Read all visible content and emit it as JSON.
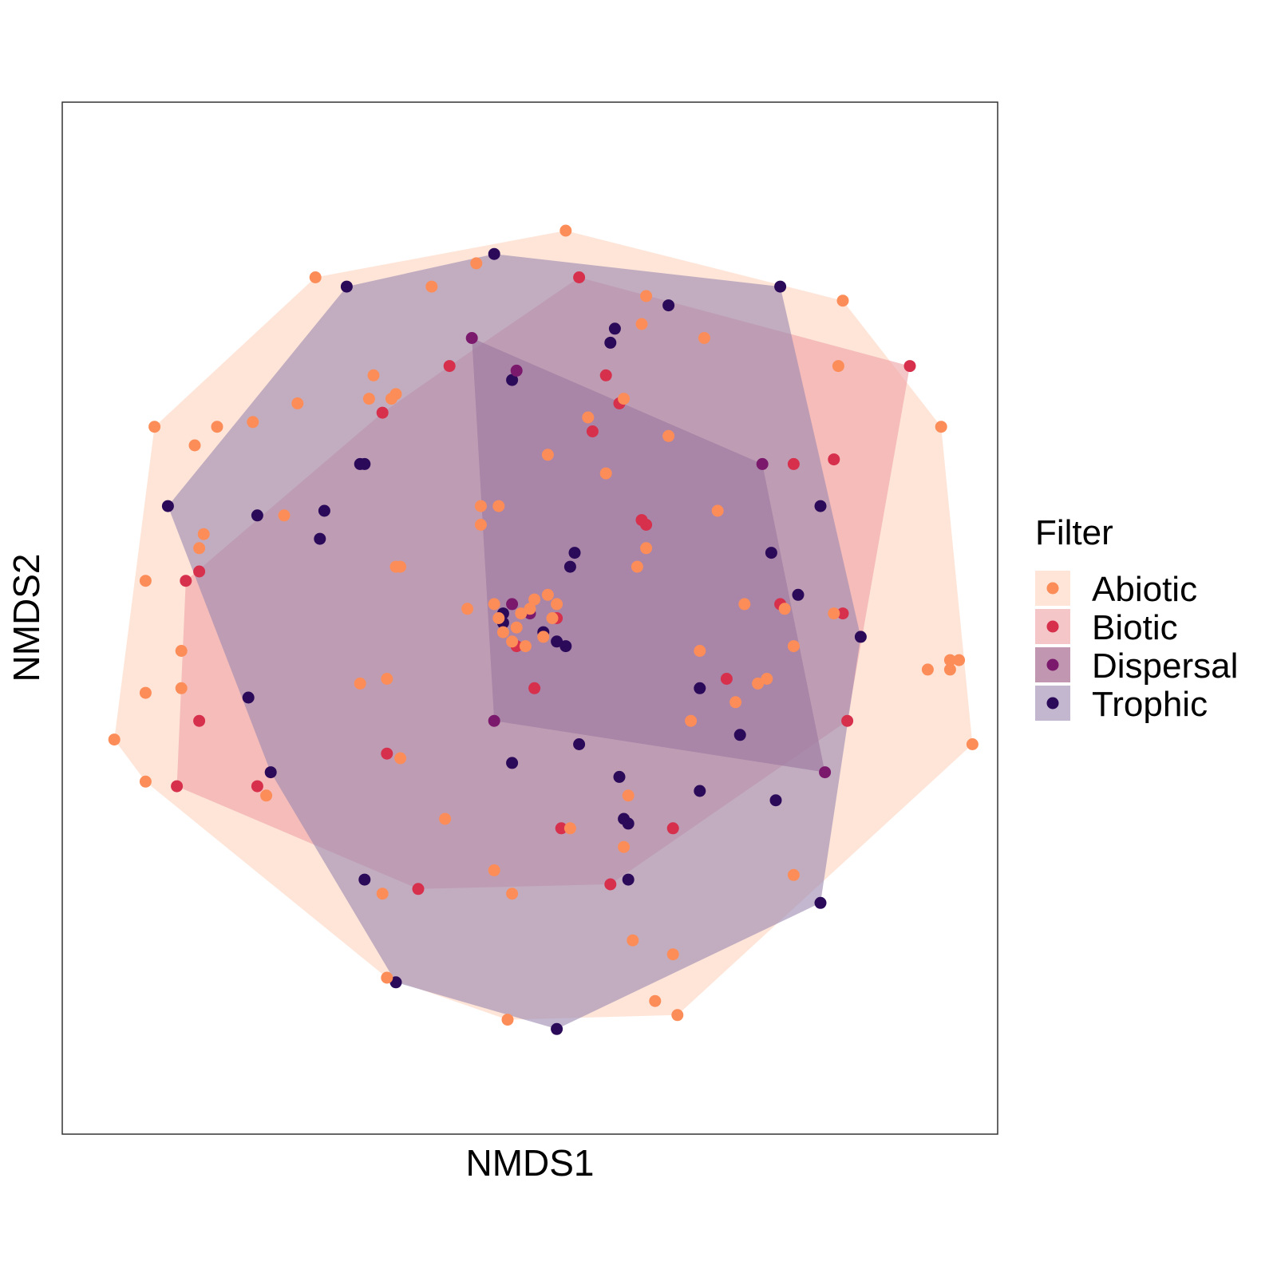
{
  "chart_data": {
    "type": "scatter",
    "title": "",
    "xlabel": "NMDS1",
    "ylabel": "NMDS2",
    "xlim": [
      -1.0,
      1.0
    ],
    "ylim": [
      -1.0,
      1.0
    ],
    "grid": false,
    "axis_ticks": false,
    "hulls": true,
    "legend": {
      "title": "Filter",
      "placement": "right"
    },
    "series": [
      {
        "name": "Abiotic",
        "color": "#FC8D59",
        "fill": "#FDD5C0",
        "points": [
          [
            0.08,
            0.83
          ],
          [
            -0.48,
            0.73
          ],
          [
            -0.12,
            0.76
          ],
          [
            -0.22,
            0.71
          ],
          [
            0.26,
            0.69
          ],
          [
            0.25,
            0.63
          ],
          [
            0.39,
            0.6
          ],
          [
            0.7,
            0.68
          ],
          [
            0.69,
            0.54
          ],
          [
            -0.35,
            0.52
          ],
          [
            -0.3,
            0.48
          ],
          [
            -0.36,
            0.47
          ],
          [
            -0.31,
            0.47
          ],
          [
            -0.52,
            0.46
          ],
          [
            0.21,
            0.47
          ],
          [
            0.13,
            0.43
          ],
          [
            -0.84,
            0.41
          ],
          [
            -0.7,
            0.41
          ],
          [
            -0.62,
            0.42
          ],
          [
            -0.75,
            0.37
          ],
          [
            0.31,
            0.39
          ],
          [
            0.04,
            0.35
          ],
          [
            0.17,
            0.31
          ],
          [
            0.92,
            0.41
          ],
          [
            -0.07,
            0.24
          ],
          [
            -0.11,
            0.24
          ],
          [
            -0.11,
            0.2
          ],
          [
            -0.55,
            0.22
          ],
          [
            0.42,
            0.23
          ],
          [
            -0.73,
            0.18
          ],
          [
            -0.74,
            0.15
          ],
          [
            0.26,
            0.15
          ],
          [
            -0.29,
            0.11
          ],
          [
            -0.3,
            0.11
          ],
          [
            0.24,
            0.11
          ],
          [
            -0.86,
            0.08
          ],
          [
            -0.78,
            -0.07
          ],
          [
            -0.38,
            -0.14
          ],
          [
            -0.32,
            -0.13
          ],
          [
            -0.86,
            -0.16
          ],
          [
            -0.78,
            -0.15
          ],
          [
            -0.93,
            -0.26
          ],
          [
            0.99,
            -0.27
          ],
          [
            0.94,
            -0.09
          ],
          [
            0.94,
            -0.11
          ],
          [
            0.96,
            -0.09
          ],
          [
            0.89,
            -0.11
          ],
          [
            0.68,
            0.01
          ],
          [
            0.59,
            -0.06
          ],
          [
            0.53,
            -0.13
          ],
          [
            0.46,
            -0.18
          ],
          [
            0.36,
            -0.22
          ],
          [
            0.38,
            -0.07
          ],
          [
            -0.29,
            -0.3
          ],
          [
            -0.59,
            -0.38
          ],
          [
            -0.19,
            -0.43
          ],
          [
            0.09,
            -0.45
          ],
          [
            0.22,
            -0.38
          ],
          [
            0.21,
            -0.49
          ],
          [
            -0.08,
            -0.54
          ],
          [
            -0.33,
            -0.59
          ],
          [
            -0.04,
            -0.59
          ],
          [
            0.59,
            -0.55
          ],
          [
            0.23,
            -0.69
          ],
          [
            -0.32,
            -0.77
          ],
          [
            0.32,
            -0.72
          ],
          [
            0.28,
            -0.82
          ],
          [
            -0.86,
            -0.35
          ],
          [
            0.33,
            -0.85
          ],
          [
            -0.05,
            -0.86
          ],
          [
            0.48,
            0.03
          ],
          [
            0.51,
            -0.14
          ],
          [
            0.57,
            0.02
          ],
          [
            -0.14,
            0.02
          ],
          [
            -0.08,
            0.03
          ],
          [
            0.06,
            0.03
          ],
          [
            -0.06,
            -0.03
          ],
          [
            -0.04,
            -0.05
          ],
          [
            0.0,
            0.02
          ],
          [
            -0.02,
            0.01
          ],
          [
            0.05,
            0.0
          ],
          [
            0.01,
            0.04
          ],
          [
            -0.03,
            -0.02
          ],
          [
            0.03,
            -0.04
          ],
          [
            -0.01,
            -0.06
          ],
          [
            0.04,
            0.05
          ],
          [
            -0.07,
            0.0
          ]
        ]
      },
      {
        "name": "Biotic",
        "color": "#D6304D",
        "fill": "#EFA3A6",
        "points": [
          [
            0.11,
            0.73
          ],
          [
            -0.18,
            0.54
          ],
          [
            0.17,
            0.52
          ],
          [
            0.2,
            0.46
          ],
          [
            -0.33,
            0.44
          ],
          [
            0.14,
            0.4
          ],
          [
            0.59,
            0.33
          ],
          [
            0.68,
            0.34
          ],
          [
            0.25,
            0.21
          ],
          [
            0.26,
            0.2
          ],
          [
            0.85,
            0.54
          ],
          [
            0.56,
            0.03
          ],
          [
            0.7,
            0.01
          ],
          [
            -0.74,
            0.1
          ],
          [
            -0.77,
            0.08
          ],
          [
            0.44,
            -0.13
          ],
          [
            -0.74,
            -0.22
          ],
          [
            0.71,
            -0.22
          ],
          [
            -0.79,
            -0.36
          ],
          [
            -0.61,
            -0.36
          ],
          [
            -0.32,
            -0.29
          ],
          [
            0.01,
            -0.15
          ],
          [
            0.07,
            -0.45
          ],
          [
            0.32,
            -0.45
          ],
          [
            -0.25,
            -0.58
          ],
          [
            0.18,
            -0.57
          ],
          [
            0.06,
            0.0
          ],
          [
            -0.03,
            -0.06
          ]
        ]
      },
      {
        "name": "Dispersal",
        "color": "#7B1A6D",
        "fill": "#9B5581",
        "points": [
          [
            -0.13,
            0.6
          ],
          [
            -0.03,
            0.53
          ],
          [
            0.52,
            0.33
          ],
          [
            -0.08,
            -0.22
          ],
          [
            0.66,
            -0.33
          ],
          [
            0.0,
            0.01
          ],
          [
            -0.04,
            0.03
          ]
        ]
      },
      {
        "name": "Trophic",
        "color": "#2B0A5A",
        "fill": "#9C8BB2",
        "points": [
          [
            -0.08,
            0.78
          ],
          [
            -0.41,
            0.71
          ],
          [
            0.31,
            0.67
          ],
          [
            0.56,
            0.71
          ],
          [
            0.19,
            0.62
          ],
          [
            0.18,
            0.59
          ],
          [
            -0.04,
            0.51
          ],
          [
            -0.38,
            0.33
          ],
          [
            -0.37,
            0.33
          ],
          [
            -0.81,
            0.24
          ],
          [
            -0.46,
            0.23
          ],
          [
            -0.61,
            0.22
          ],
          [
            -0.47,
            0.17
          ],
          [
            0.65,
            0.24
          ],
          [
            0.54,
            0.14
          ],
          [
            0.1,
            0.14
          ],
          [
            0.09,
            0.11
          ],
          [
            0.6,
            0.05
          ],
          [
            0.74,
            -0.04
          ],
          [
            -0.63,
            -0.17
          ],
          [
            0.47,
            -0.25
          ],
          [
            0.38,
            -0.15
          ],
          [
            0.11,
            -0.27
          ],
          [
            -0.04,
            -0.31
          ],
          [
            0.2,
            -0.34
          ],
          [
            0.38,
            -0.37
          ],
          [
            0.55,
            -0.39
          ],
          [
            0.21,
            -0.43
          ],
          [
            0.22,
            -0.44
          ],
          [
            0.22,
            -0.56
          ],
          [
            0.65,
            -0.61
          ],
          [
            -0.37,
            -0.56
          ],
          [
            -0.3,
            -0.78
          ],
          [
            0.06,
            -0.88
          ],
          [
            -0.58,
            -0.33
          ],
          [
            0.06,
            -0.05
          ],
          [
            0.08,
            -0.06
          ],
          [
            -0.06,
            -0.01
          ],
          [
            -0.06,
            0.01
          ],
          [
            0.03,
            -0.03
          ]
        ]
      }
    ]
  }
}
